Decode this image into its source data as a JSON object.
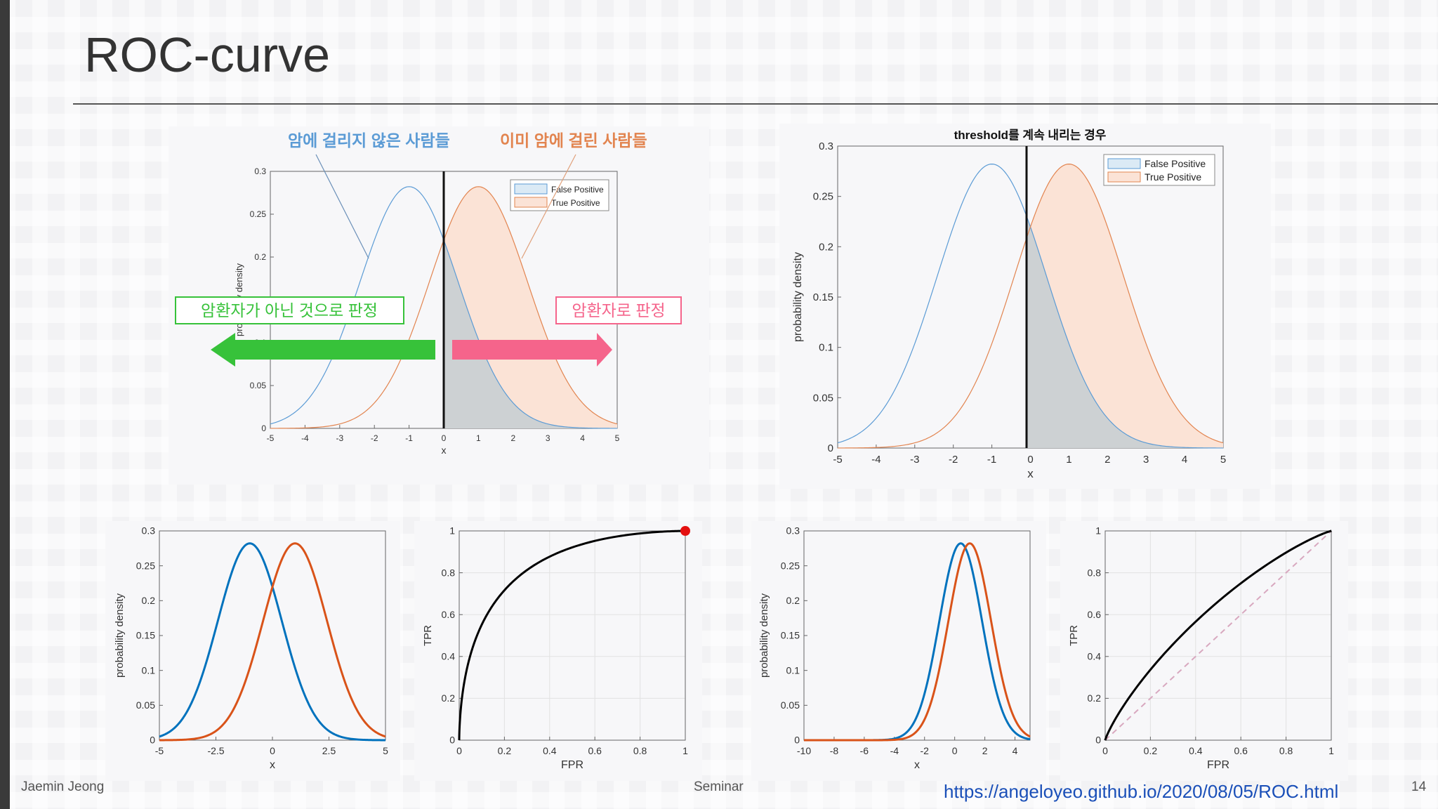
{
  "slide": {
    "title": "ROC-curve",
    "footer_author": "Jaemin Jeong",
    "footer_center": "Seminar",
    "footer_link": "https://angeloyeo.github.io/2020/08/05/ROC.html",
    "page_number": "14"
  },
  "annotations": {
    "not_cancer_label": "암에 걸리지 않은 사람들",
    "cancer_label": "이미 암에 걸린 사람들",
    "judge_negative": "암환자가 아닌 것으로 판정",
    "judge_positive": "암환자로 판정"
  },
  "colors": {
    "negative_curve": "#5b9bd5",
    "positive_curve": "#e2844f",
    "fp_fill": "#dbeaf5",
    "tp_fill": "#fbe3d6",
    "overlap_fill": "#c9c9c9",
    "left_arrow": "#37c23a",
    "right_arrow": "#f5648b",
    "bold_blue": "#0072bd",
    "bold_red": "#d95319",
    "roc_point": "#e41010"
  },
  "chart_data": [
    {
      "id": "threshold-zero",
      "type": "area",
      "title": "",
      "xlabel": "x",
      "ylabel": "probability density",
      "xlim": [
        -5,
        5
      ],
      "ylim": [
        0,
        0.3
      ],
      "xticks": [
        "-5",
        "-4",
        "-3",
        "-2",
        "-1",
        "0",
        "1",
        "2",
        "3",
        "4",
        "5"
      ],
      "yticks": [
        "0",
        "0.05",
        "0.1",
        "0.15",
        "0.2",
        "0.25",
        "0.3"
      ],
      "series": [
        {
          "name": "False Positive",
          "distribution": "normal",
          "mean": -1,
          "sd": 1.414
        },
        {
          "name": "True Positive",
          "distribution": "normal",
          "mean": 1,
          "sd": 1.414
        }
      ],
      "threshold": 0,
      "legend": "top-right",
      "grid": false
    },
    {
      "id": "threshold-lowered",
      "type": "area",
      "title": "threshold를 계속 내리는 경우",
      "xlabel": "x",
      "ylabel": "probability density",
      "xlim": [
        -5,
        5
      ],
      "ylim": [
        0,
        0.3
      ],
      "xticks": [
        "-5",
        "-4",
        "-3",
        "-2",
        "-1",
        "0",
        "1",
        "2",
        "3",
        "4",
        "5"
      ],
      "yticks": [
        "0",
        "0.05",
        "0.1",
        "0.15",
        "0.2",
        "0.25",
        "0.3"
      ],
      "series": [
        {
          "name": "False Positive",
          "distribution": "normal",
          "mean": -1,
          "sd": 1.414
        },
        {
          "name": "True Positive",
          "distribution": "normal",
          "mean": 1,
          "sd": 1.414
        }
      ],
      "threshold": -0.1,
      "legend": "top-right",
      "grid": false
    },
    {
      "id": "dist-separated",
      "type": "line",
      "xlabel": "x",
      "ylabel": "probability density",
      "xlim": [
        -5,
        5
      ],
      "ylim": [
        0,
        0.3
      ],
      "xticks": [
        "-5",
        "-2.5",
        "0",
        "2.5",
        "5"
      ],
      "yticks": [
        "0",
        "0.05",
        "0.1",
        "0.15",
        "0.2",
        "0.25",
        "0.3"
      ],
      "series": [
        {
          "distribution": "normal",
          "mean": -1,
          "sd": 1.414
        },
        {
          "distribution": "normal",
          "mean": 1,
          "sd": 1.414
        }
      ],
      "grid": false
    },
    {
      "id": "roc-separated",
      "type": "line",
      "xlabel": "FPR",
      "ylabel": "TPR",
      "xlim": [
        0,
        1
      ],
      "ylim": [
        0,
        1
      ],
      "xticks": [
        "0",
        "0.2",
        "0.4",
        "0.6",
        "0.8",
        "1"
      ],
      "yticks": [
        "0",
        "0.2",
        "0.4",
        "0.6",
        "0.8",
        "1"
      ],
      "roc": {
        "d_prime": 1.414
      },
      "highlight_point": [
        1,
        1
      ],
      "grid": true
    },
    {
      "id": "dist-overlapping",
      "type": "line",
      "xlabel": "x",
      "ylabel": "probability density",
      "xlim": [
        -10,
        5
      ],
      "ylim": [
        0,
        0.3
      ],
      "xticks": [
        "-10",
        "-8",
        "-6",
        "-4",
        "-2",
        "0",
        "2",
        "4"
      ],
      "yticks": [
        "0",
        "0.05",
        "0.1",
        "0.15",
        "0.2",
        "0.25",
        "0.3"
      ],
      "series": [
        {
          "distribution": "normal",
          "mean": 0.4,
          "sd": 1.414
        },
        {
          "distribution": "normal",
          "mean": 1,
          "sd": 1.414
        }
      ],
      "grid": false
    },
    {
      "id": "roc-overlapping",
      "type": "line",
      "xlabel": "FPR",
      "ylabel": "TPR",
      "xlim": [
        0,
        1
      ],
      "ylim": [
        0,
        1
      ],
      "xticks": [
        "0",
        "0.2",
        "0.4",
        "0.6",
        "0.8",
        "1"
      ],
      "yticks": [
        "0",
        "0.2",
        "0.4",
        "0.6",
        "0.8",
        "1"
      ],
      "roc": {
        "d_prime": 0.42
      },
      "diagonal": true,
      "grid": true
    }
  ]
}
